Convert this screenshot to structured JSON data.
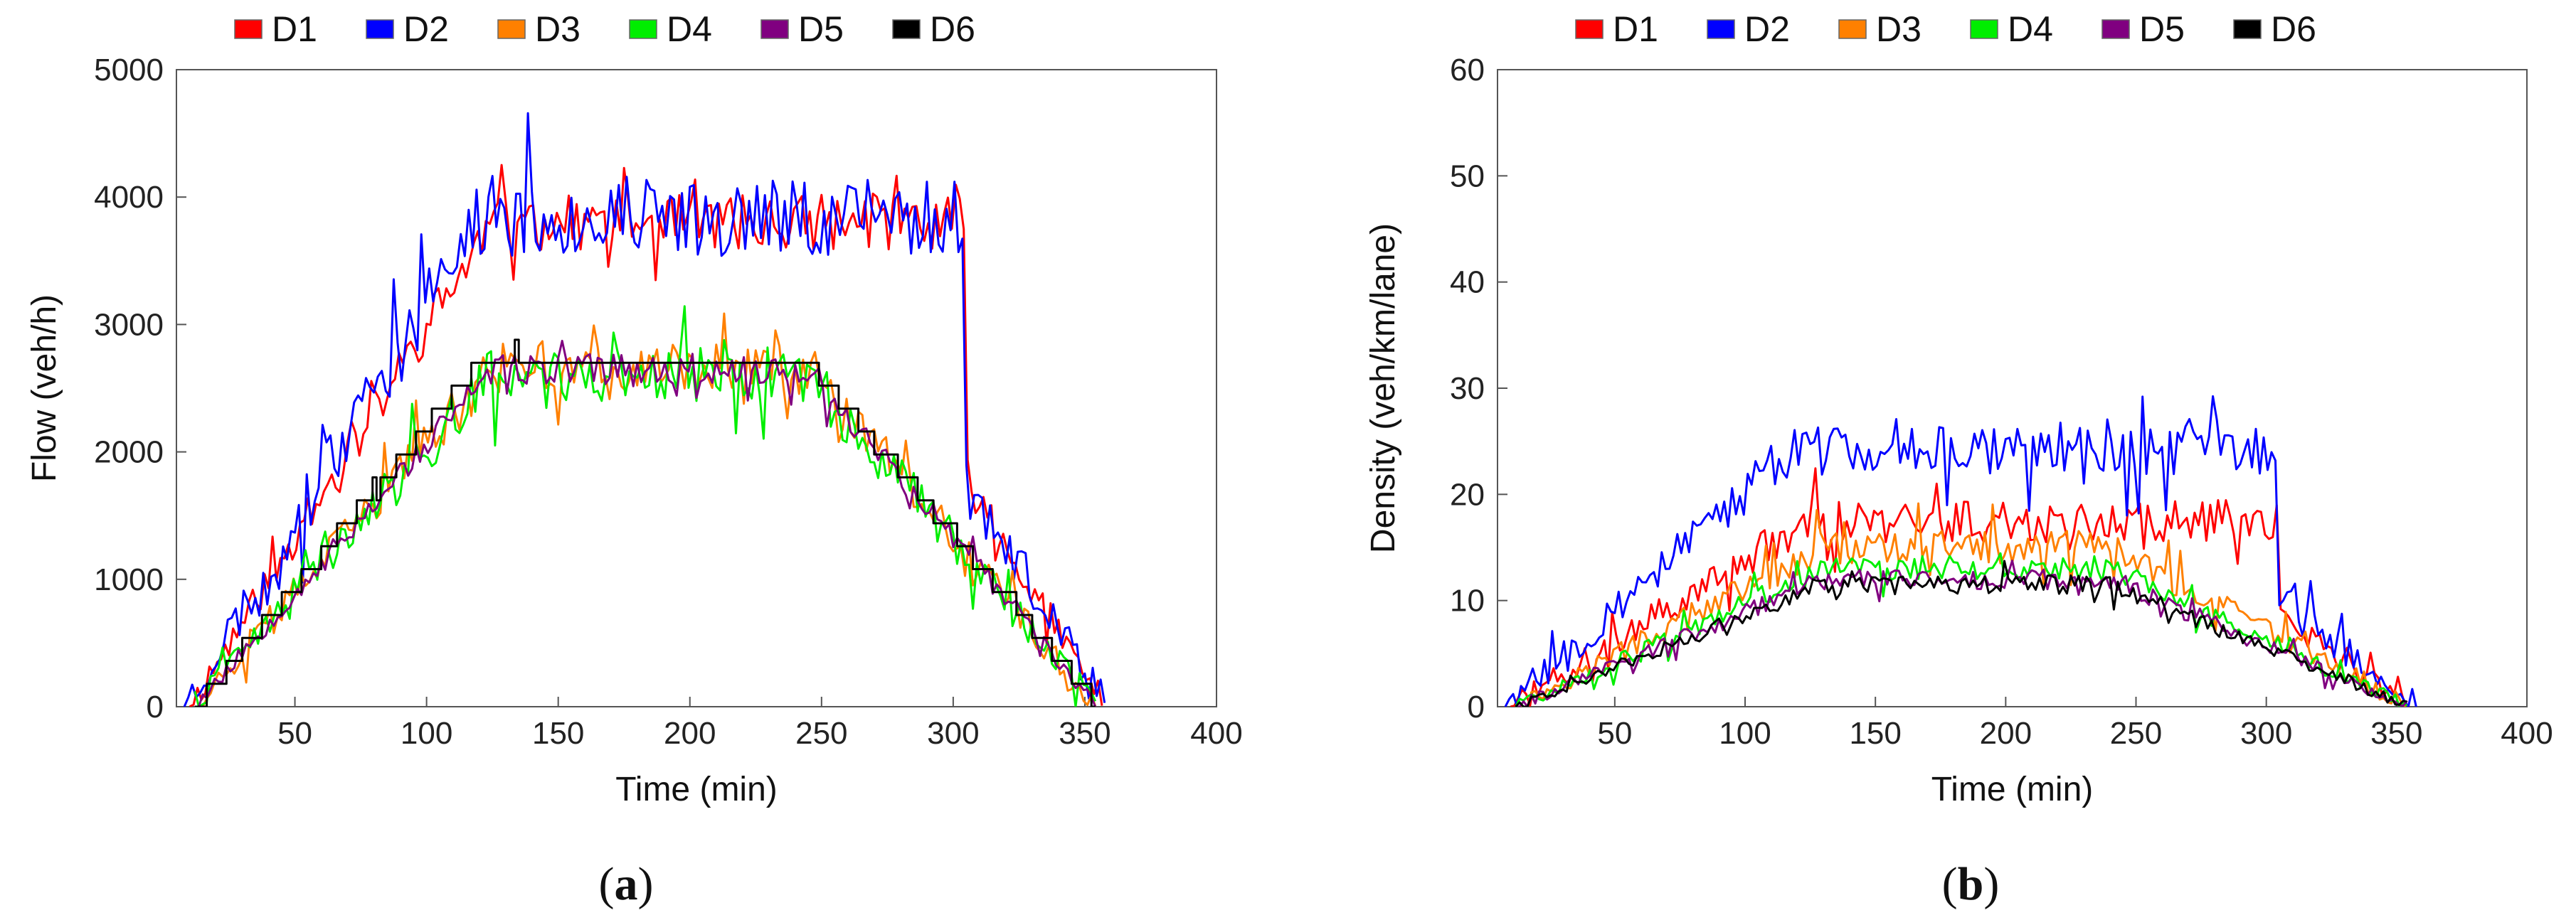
{
  "chart_data": [
    {
      "type": "line",
      "panel": "a",
      "caption": "(a)",
      "xlabel": "Time (min)",
      "ylabel": "Flow (veh/h)",
      "xlim": [
        5,
        400
      ],
      "ylim": [
        0,
        5000
      ],
      "xticks": [
        50,
        100,
        150,
        200,
        250,
        300,
        350,
        400
      ],
      "yticks": [
        0,
        1000,
        2000,
        3000,
        4000,
        5000
      ],
      "legend_position": "top",
      "series": [
        {
          "name": "D1",
          "color": "#ff0000",
          "start": 10,
          "end": 357,
          "rise_end": 125,
          "fall_start": 305,
          "peak": 3800,
          "noise": 220,
          "drop_to": 1800,
          "step": 0,
          "seed": 11
        },
        {
          "name": "D2",
          "color": "#0000ff",
          "start": 8,
          "end": 358,
          "rise_end": 120,
          "fall_start": 305,
          "peak": 3850,
          "noise": 320,
          "drop_to": 1750,
          "step": 0,
          "seed": 23
        },
        {
          "name": "D3",
          "color": "#ff8000",
          "start": 12,
          "end": 355,
          "rise_end": 125,
          "fall_start": 245,
          "peak": 2650,
          "noise": 200,
          "drop_to": 0,
          "step": 0,
          "seed": 37
        },
        {
          "name": "D4",
          "color": "#00ee00",
          "start": 12,
          "end": 355,
          "rise_end": 125,
          "fall_start": 245,
          "peak": 2600,
          "noise": 220,
          "drop_to": 0,
          "step": 0,
          "seed": 41
        },
        {
          "name": "D5",
          "color": "#800080",
          "start": 12,
          "end": 355,
          "rise_end": 125,
          "fall_start": 245,
          "peak": 2650,
          "noise": 120,
          "drop_to": 0,
          "step": 0,
          "seed": 53
        },
        {
          "name": "D6",
          "color": "#000000",
          "start": 12,
          "end": 355,
          "rise_end": 120,
          "fall_start": 245,
          "peak": 2700,
          "noise": 40,
          "drop_to": 0,
          "step": 180,
          "seed": 67
        }
      ]
    },
    {
      "type": "line",
      "panel": "b",
      "caption": "(b)",
      "xlabel": "Time (min)",
      "ylabel": "Density (veh/km/lane)",
      "xlim": [
        5,
        400
      ],
      "ylim": [
        0,
        60
      ],
      "xticks": [
        50,
        100,
        150,
        200,
        250,
        300,
        350,
        400
      ],
      "yticks": [
        0,
        10,
        20,
        30,
        40,
        50,
        60
      ],
      "legend_position": "top",
      "series": [
        {
          "name": "D1",
          "color": "#ff0000",
          "start": 10,
          "end": 356,
          "rise_end": 125,
          "fall_start": 305,
          "peak": 17.5,
          "noise": 2.0,
          "drop_to": 8.5,
          "step": 0,
          "seed": 71
        },
        {
          "name": "D2",
          "color": "#0000ff",
          "start": 8,
          "end": 358,
          "rise_end": 120,
          "fall_start": 305,
          "peak": 24.5,
          "noise": 2.6,
          "drop_to": 10,
          "step": 0,
          "seed": 83
        },
        {
          "name": "D3",
          "color": "#ff8000",
          "start": 12,
          "end": 355,
          "rise_end": 130,
          "fall_start": 240,
          "peak": 15,
          "noise": 1.6,
          "drop_to": 0,
          "step": 0,
          "seed": 97
        },
        {
          "name": "D4",
          "color": "#00ee00",
          "start": 12,
          "end": 355,
          "rise_end": 130,
          "fall_start": 240,
          "peak": 13,
          "noise": 1.2,
          "drop_to": 0,
          "step": 0,
          "seed": 101
        },
        {
          "name": "D5",
          "color": "#800080",
          "start": 12,
          "end": 355,
          "rise_end": 130,
          "fall_start": 240,
          "peak": 12,
          "noise": 1.0,
          "drop_to": 0,
          "step": 0,
          "seed": 113
        },
        {
          "name": "D6",
          "color": "#000000",
          "start": 12,
          "end": 355,
          "rise_end": 130,
          "fall_start": 240,
          "peak": 11.5,
          "noise": 0.9,
          "drop_to": 0,
          "step": 0,
          "seed": 127
        }
      ]
    }
  ]
}
